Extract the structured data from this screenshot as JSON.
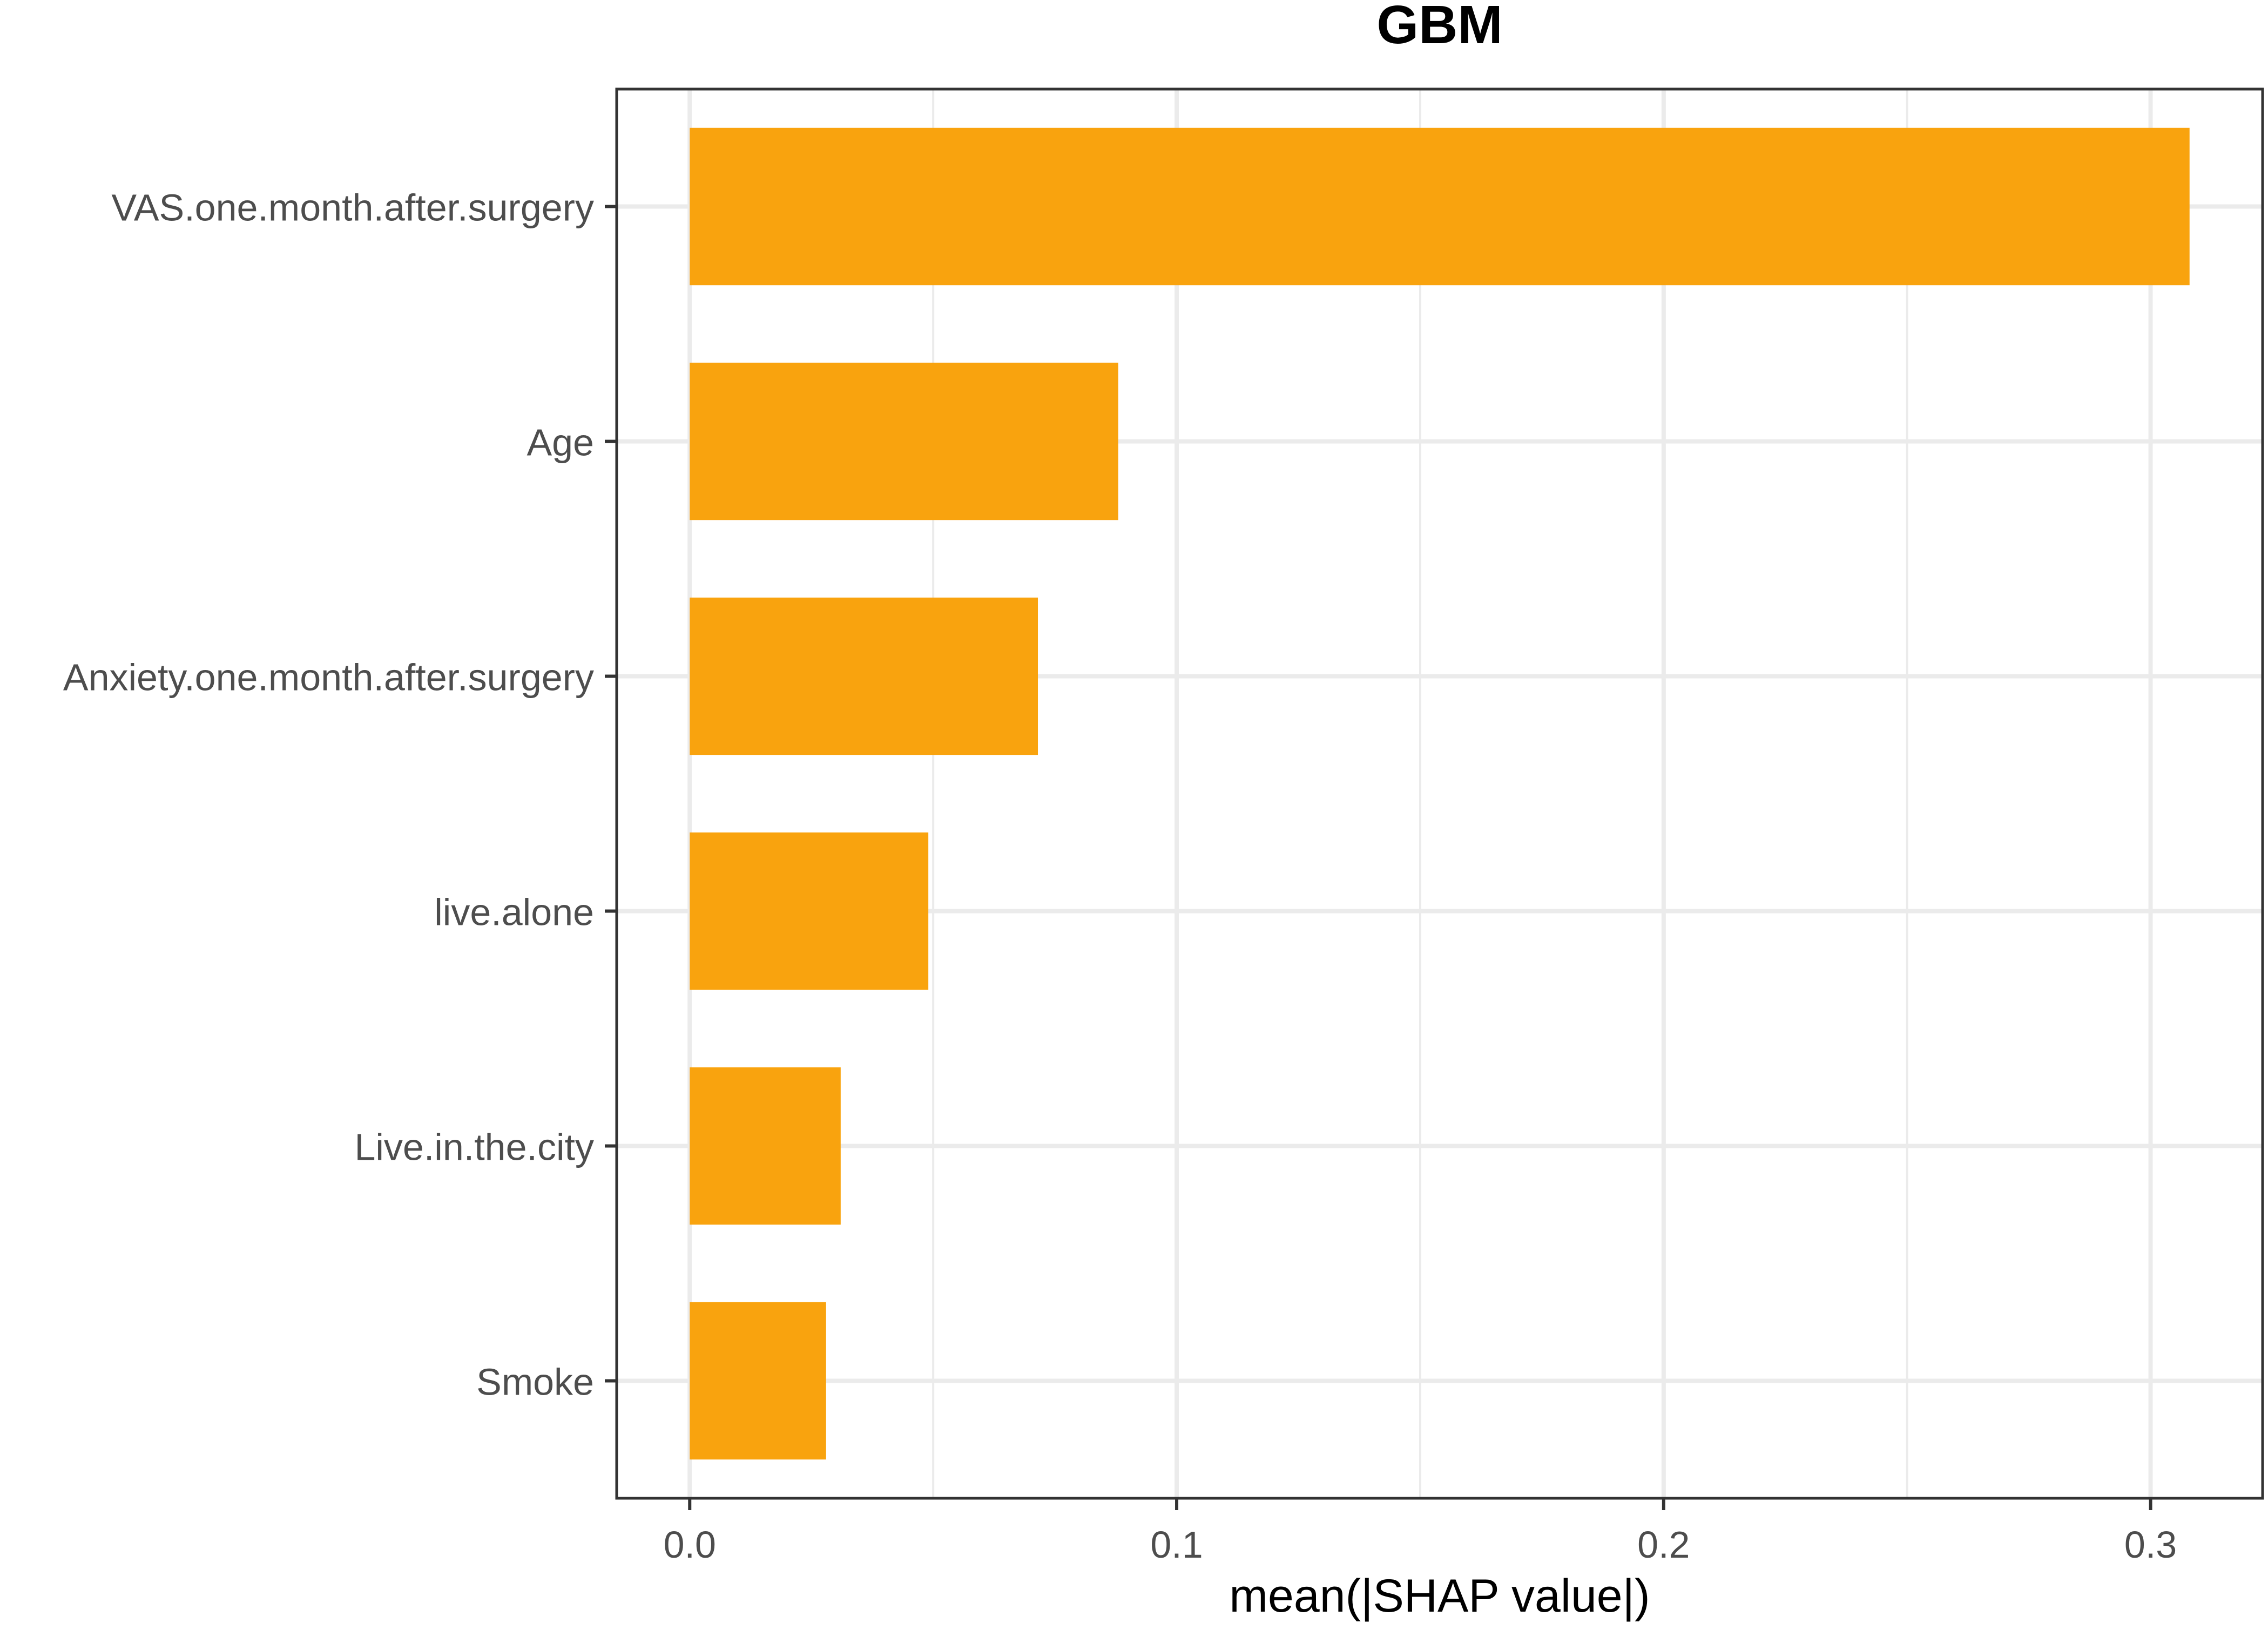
{
  "chart_data": {
    "type": "bar",
    "orientation": "horizontal",
    "title": "GBM",
    "xlabel": "mean(|SHAP value|)",
    "ylabel": "",
    "categories": [
      "VAS.one.month.after.surgery",
      "Age",
      "Anxiety.one.month.after.surgery",
      "live.alone",
      "Live.in.the.city",
      "Smoke"
    ],
    "values": [
      0.308,
      0.088,
      0.0715,
      0.049,
      0.031,
      0.028
    ],
    "xlim": [
      -0.015,
      0.323
    ],
    "x_ticks": [
      0.0,
      0.1,
      0.2,
      0.3
    ],
    "x_tick_labels": [
      "0.0",
      "0.1",
      "0.2",
      "0.3"
    ],
    "grid": true,
    "bar_color": "#F9A30E"
  }
}
